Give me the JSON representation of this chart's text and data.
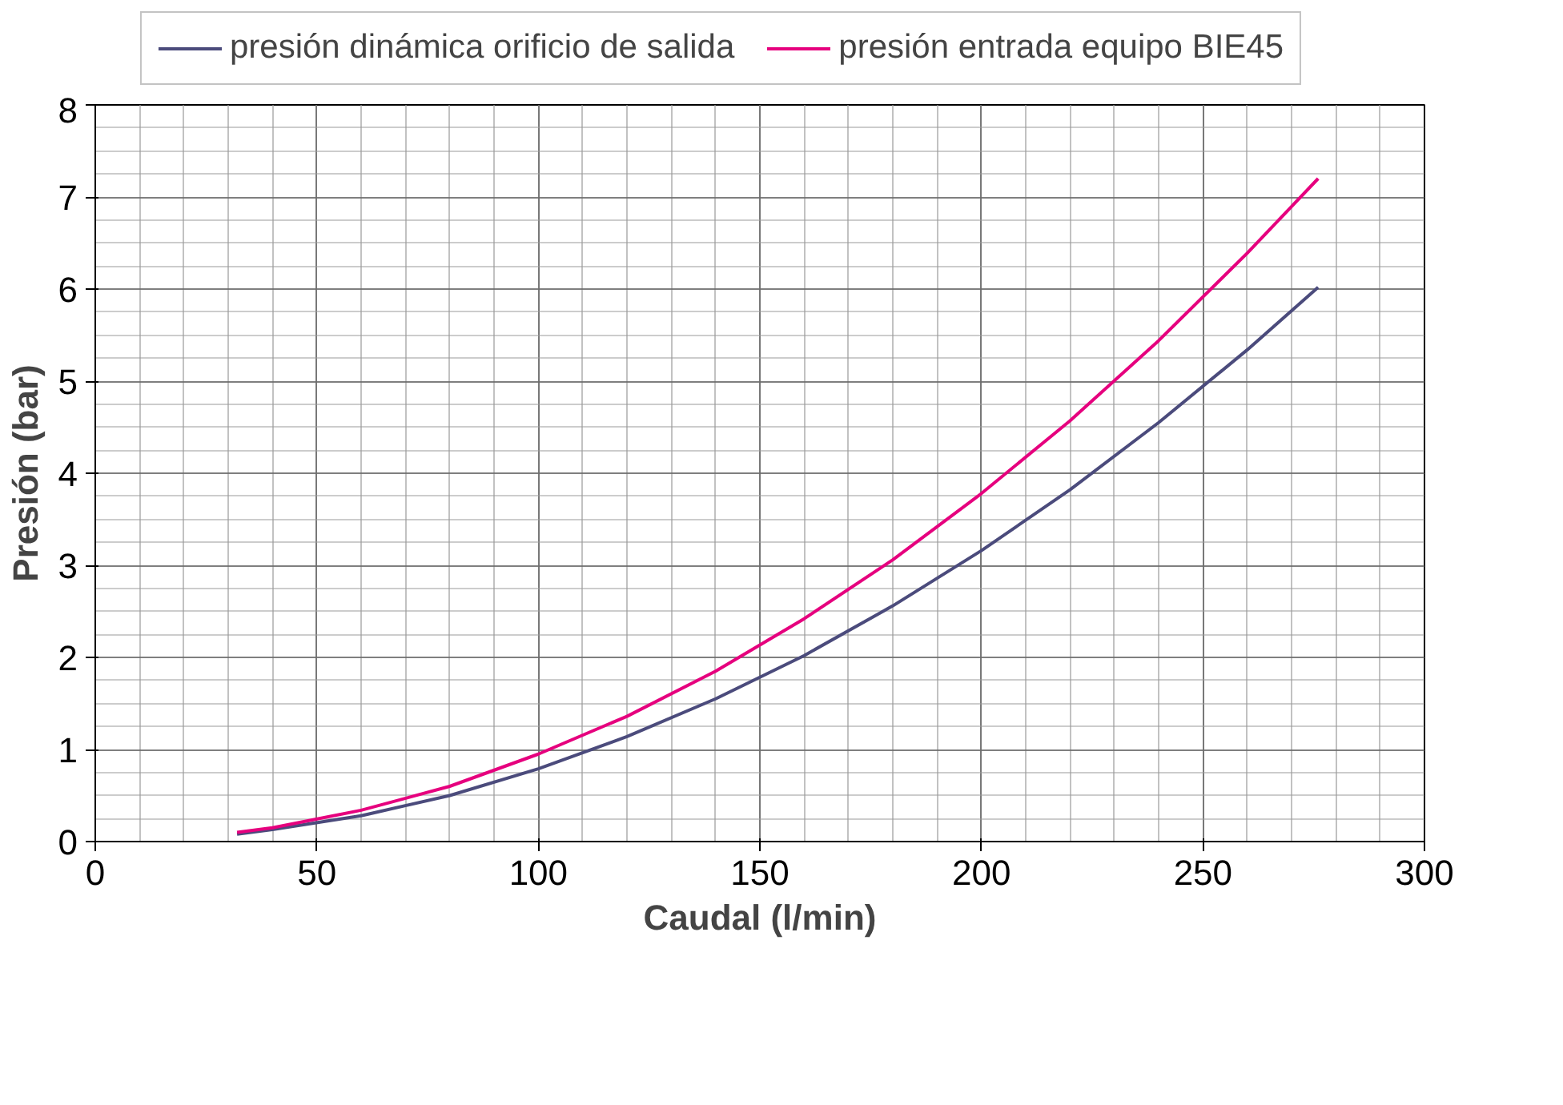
{
  "chart_data": {
    "type": "line",
    "xlabel": "Caudal (l/min)",
    "ylabel": "Presión (bar)",
    "xlim": [
      0,
      300
    ],
    "ylim": [
      0,
      8
    ],
    "xticks": [
      0,
      50,
      100,
      150,
      200,
      250,
      300
    ],
    "yticks": [
      0,
      1,
      2,
      3,
      4,
      5,
      6,
      7,
      8
    ],
    "grid": true,
    "legend": "top",
    "line_style": "solid",
    "series": [
      {
        "name": "presión dinámica orificio de salida",
        "color": "#4b4b7c",
        "x": [
          32,
          40,
          60,
          80,
          100,
          120,
          140,
          160,
          180,
          200,
          220,
          240,
          260,
          276
        ],
        "values": [
          0.08,
          0.13,
          0.28,
          0.5,
          0.79,
          1.14,
          1.55,
          2.02,
          2.56,
          3.16,
          3.82,
          4.55,
          5.34,
          6.02
        ]
      },
      {
        "name": "presión entrada equipo BIE45",
        "color": "#e6007e",
        "x": [
          32,
          40,
          60,
          80,
          100,
          120,
          140,
          160,
          180,
          200,
          220,
          240,
          260,
          276
        ],
        "values": [
          0.1,
          0.15,
          0.34,
          0.6,
          0.95,
          1.36,
          1.85,
          2.42,
          3.06,
          3.78,
          4.57,
          5.44,
          6.39,
          7.2
        ]
      }
    ]
  }
}
